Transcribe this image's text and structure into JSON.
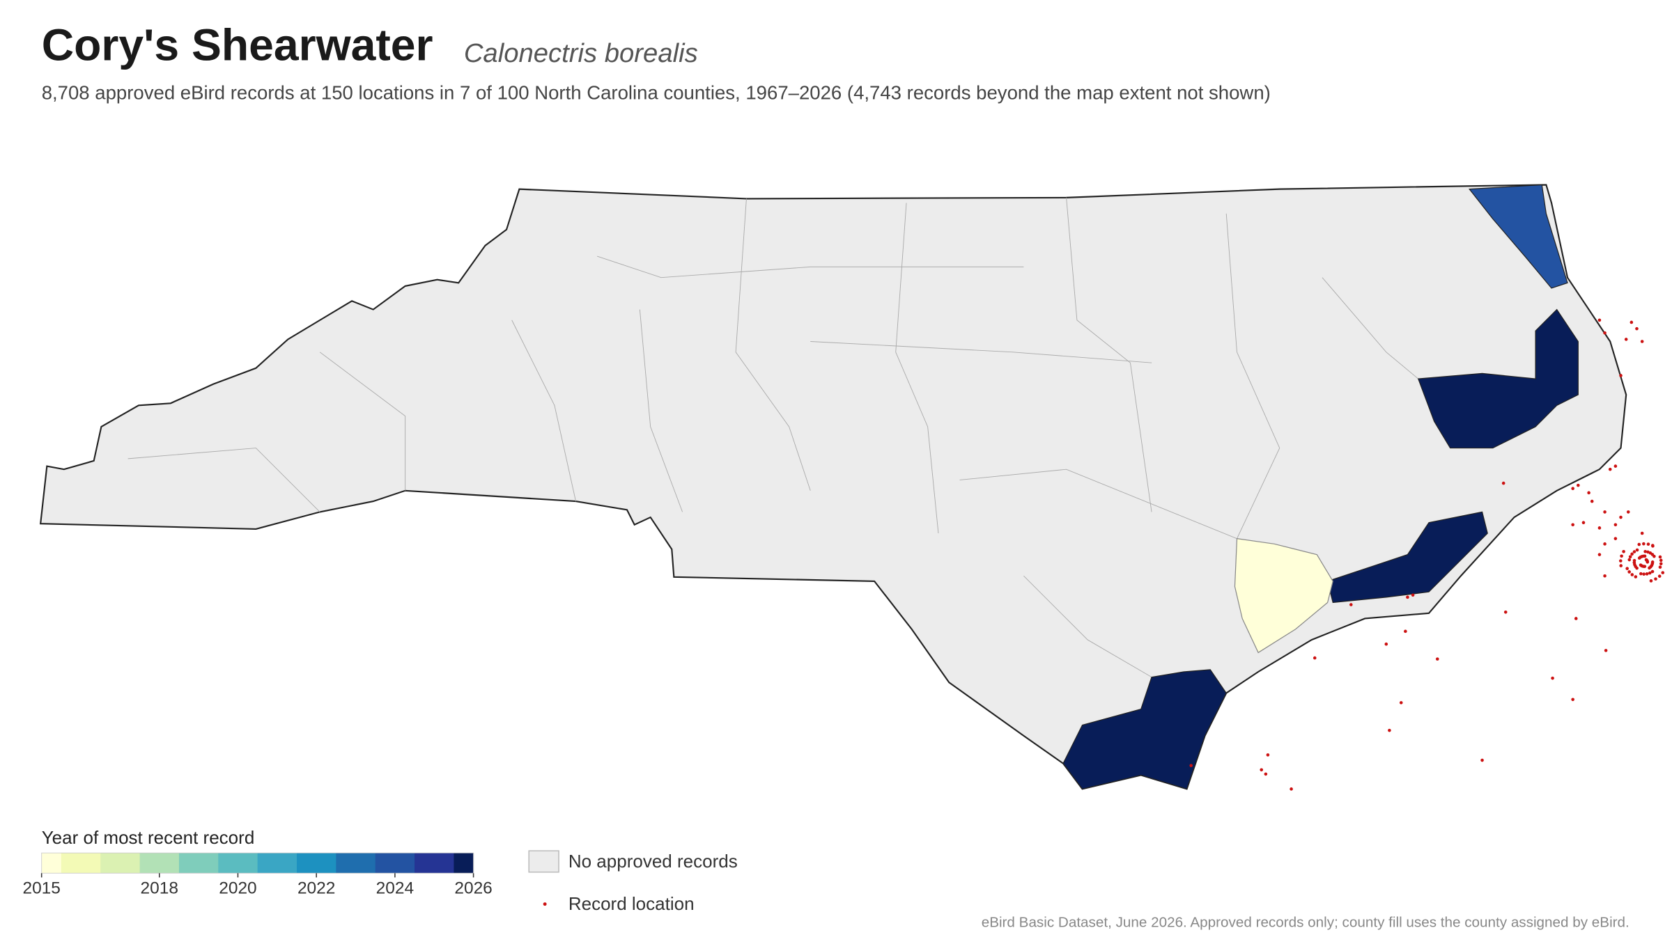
{
  "header": {
    "title": "Cory's Shearwater",
    "species": "Calonectris borealis",
    "subtitle": "8,708 approved eBird records at 150 locations in 7 of 100 North Carolina counties, 1967–2026 (4,743 records beyond the map extent not shown)"
  },
  "legend": {
    "title": "Year of most recent record",
    "range": [
      2015,
      2026
    ],
    "ticks": [
      2015,
      2018,
      2020,
      2022,
      2024,
      2026
    ],
    "colors": [
      "#ffffd9",
      "#f3fab6",
      "#dbf1b2",
      "#b2e1b6",
      "#7fcdbb",
      "#5bbcc0",
      "#3aa6c4",
      "#1d91c0",
      "#1f6eae",
      "#2353a2",
      "#253494",
      "#081d58"
    ],
    "no_records": "No approved records",
    "record_location": "Record location"
  },
  "source": "eBird Basic Dataset, June 2026. Approved records only; county fill uses the county assigned by eBird."
}
